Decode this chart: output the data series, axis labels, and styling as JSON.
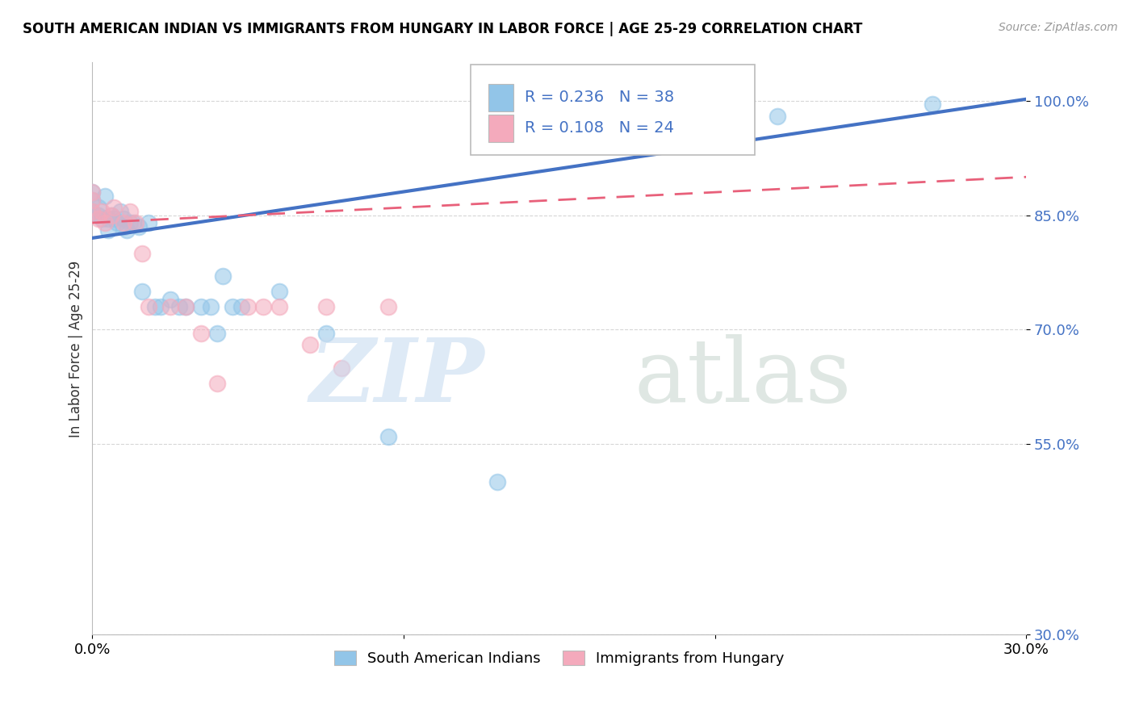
{
  "title": "SOUTH AMERICAN INDIAN VS IMMIGRANTS FROM HUNGARY IN LABOR FORCE | AGE 25-29 CORRELATION CHART",
  "source": "Source: ZipAtlas.com",
  "ylabel": "In Labor Force | Age 25-29",
  "xlim": [
    0.0,
    0.3
  ],
  "ylim": [
    0.3,
    1.05
  ],
  "yticks": [
    0.3,
    0.55,
    0.7,
    0.85,
    1.0
  ],
  "ytick_labels": [
    "30.0%",
    "55.0%",
    "70.0%",
    "85.0%",
    "100.0%"
  ],
  "xticks": [
    0.0,
    0.1,
    0.2,
    0.3
  ],
  "xtick_labels": [
    "0.0%",
    "",
    "",
    "30.0%"
  ],
  "blue_R": 0.236,
  "blue_N": 38,
  "pink_R": 0.108,
  "pink_N": 24,
  "blue_color": "#92C5E8",
  "pink_color": "#F4AABC",
  "line_blue": "#4472C4",
  "line_pink": "#E8607A",
  "blue_scatter_x": [
    0.0,
    0.0,
    0.0,
    0.002,
    0.002,
    0.003,
    0.004,
    0.005,
    0.005,
    0.006,
    0.007,
    0.008,
    0.009,
    0.01,
    0.01,
    0.011,
    0.012,
    0.013,
    0.015,
    0.016,
    0.018,
    0.02,
    0.022,
    0.025,
    0.028,
    0.03,
    0.035,
    0.038,
    0.04,
    0.042,
    0.045,
    0.048,
    0.06,
    0.075,
    0.095,
    0.13,
    0.22,
    0.27
  ],
  "blue_scatter_y": [
    0.855,
    0.87,
    0.88,
    0.85,
    0.86,
    0.845,
    0.875,
    0.83,
    0.845,
    0.85,
    0.845,
    0.84,
    0.855,
    0.835,
    0.845,
    0.83,
    0.84,
    0.84,
    0.835,
    0.75,
    0.84,
    0.73,
    0.73,
    0.74,
    0.73,
    0.73,
    0.73,
    0.73,
    0.695,
    0.77,
    0.73,
    0.73,
    0.75,
    0.695,
    0.56,
    0.5,
    0.98,
    0.995
  ],
  "pink_scatter_x": [
    0.0,
    0.0,
    0.0,
    0.002,
    0.003,
    0.004,
    0.006,
    0.007,
    0.01,
    0.012,
    0.014,
    0.016,
    0.018,
    0.025,
    0.03,
    0.035,
    0.04,
    0.05,
    0.055,
    0.06,
    0.07,
    0.075,
    0.08,
    0.095
  ],
  "pink_scatter_y": [
    0.855,
    0.87,
    0.88,
    0.845,
    0.855,
    0.84,
    0.85,
    0.86,
    0.84,
    0.855,
    0.84,
    0.8,
    0.73,
    0.73,
    0.73,
    0.695,
    0.63,
    0.73,
    0.73,
    0.73,
    0.68,
    0.73,
    0.65,
    0.73
  ],
  "blue_line_x0": 0.0,
  "blue_line_y0": 0.82,
  "blue_line_x1": 0.3,
  "blue_line_y1": 1.002,
  "pink_line_x0": 0.0,
  "pink_line_y0": 0.84,
  "pink_line_x1": 0.15,
  "pink_line_y1": 0.87
}
